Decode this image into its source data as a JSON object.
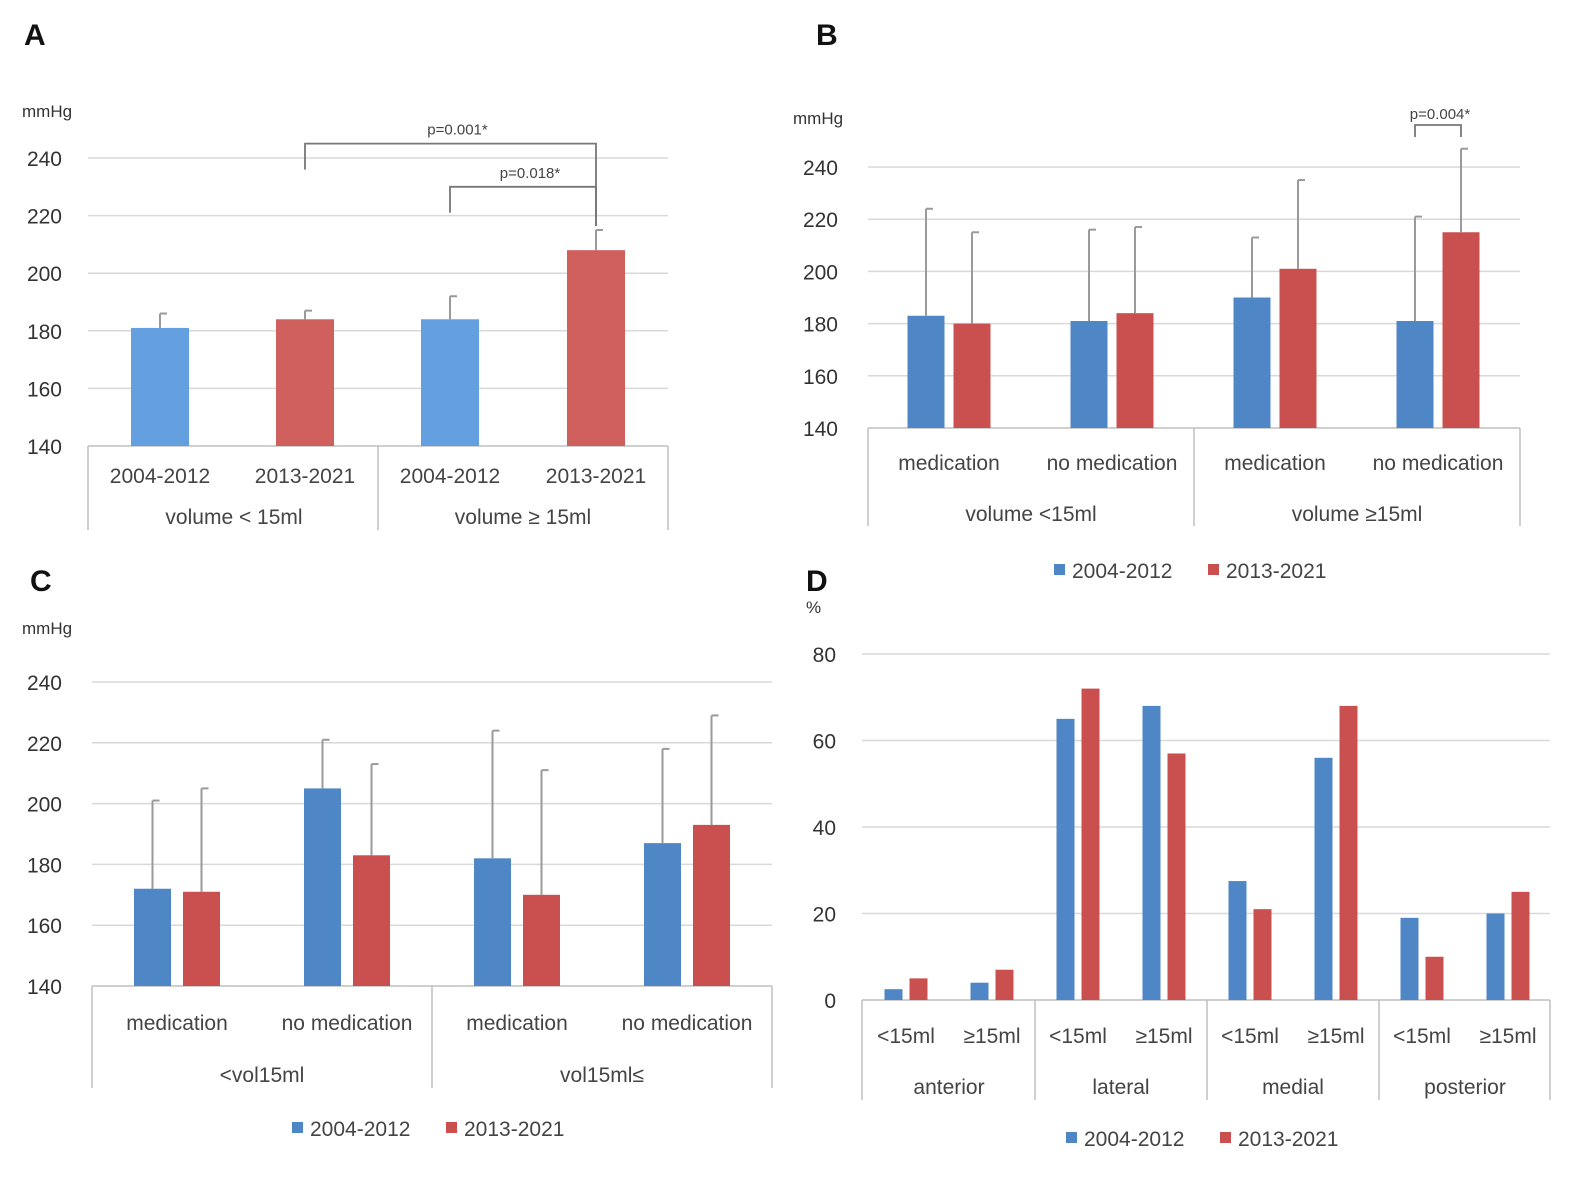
{
  "figure": {
    "colors": {
      "s1_A": "#64A0E0",
      "s2_A": "#D0605E",
      "s1": "#4F86C6",
      "s2": "#C9504E"
    }
  },
  "chart_data": [
    {
      "id": "A",
      "type": "bar",
      "panel_label": "A",
      "unit": "mmHg",
      "ylim": [
        140,
        240
      ],
      "yticks": [
        140,
        160,
        180,
        200,
        220,
        240
      ],
      "grid": true,
      "categories": [
        "2004-2012",
        "2013-2021",
        "2004-2012",
        "2013-2021"
      ],
      "groups": [
        "volume < 15ml",
        "volume ≥ 15ml"
      ],
      "values": [
        181,
        184,
        184,
        208
      ],
      "errors": [
        5,
        3,
        8,
        7
      ],
      "bar_series": [
        0,
        1,
        0,
        1
      ],
      "series_names": [
        "2004-2012",
        "2013-2021"
      ],
      "annotations": [
        {
          "text": "p=0.001*",
          "from": 1,
          "to": 3,
          "level": 245
        },
        {
          "text": "p=0.018*",
          "from": 2,
          "to": 3,
          "level": 230
        }
      ]
    },
    {
      "id": "B",
      "type": "bar",
      "panel_label": "B",
      "unit": "mmHg",
      "ylim": [
        140,
        240
      ],
      "yticks": [
        140,
        160,
        180,
        200,
        220,
        240
      ],
      "grid": true,
      "categories": [
        "medication",
        "no medication",
        "medication",
        "no medication"
      ],
      "groups": [
        "volume <15ml",
        "volume ≥15ml"
      ],
      "series": [
        {
          "name": "2004-2012",
          "values": [
            183,
            181,
            190,
            181
          ],
          "errors": [
            41,
            35,
            23,
            40
          ]
        },
        {
          "name": "2013-2021",
          "values": [
            180,
            184,
            201,
            215
          ],
          "errors": [
            35,
            33,
            34,
            32
          ]
        }
      ],
      "legend": [
        "2004-2012",
        "2013-2021"
      ],
      "annotations": [
        {
          "text": "p=0.004*",
          "category": 3
        }
      ]
    },
    {
      "id": "C",
      "type": "bar",
      "panel_label": "C",
      "unit": "mmHg",
      "ylim": [
        140,
        240
      ],
      "yticks": [
        140,
        160,
        180,
        200,
        220,
        240
      ],
      "grid": true,
      "categories": [
        "medication",
        "no medication",
        "medication",
        "no medication"
      ],
      "groups": [
        "<vol15ml",
        "vol15ml≤"
      ],
      "series": [
        {
          "name": "2004-2012",
          "values": [
            172,
            205,
            182,
            187
          ],
          "errors": [
            29,
            16,
            42,
            31
          ]
        },
        {
          "name": "2013-2021",
          "values": [
            171,
            183,
            170,
            193
          ],
          "errors": [
            34,
            30,
            41,
            36
          ]
        }
      ],
      "legend": [
        "2004-2012",
        "2013-2021"
      ]
    },
    {
      "id": "D",
      "type": "bar",
      "panel_label": "D",
      "unit": "%",
      "ylim": [
        0,
        80
      ],
      "yticks": [
        0,
        20,
        40,
        60,
        80
      ],
      "grid": true,
      "categories": [
        "<15ml",
        "≥15ml",
        "<15ml",
        "≥15ml",
        "<15ml",
        "≥15ml",
        "<15ml",
        "≥15ml"
      ],
      "groups": [
        "anterior",
        "lateral",
        "medial",
        "posterior"
      ],
      "series": [
        {
          "name": "2004-2012",
          "values": [
            2.5,
            4,
            65,
            68,
            27.5,
            56,
            19,
            20
          ]
        },
        {
          "name": "2013-2021",
          "values": [
            5,
            7,
            72,
            57,
            21,
            68,
            10,
            25
          ]
        }
      ],
      "legend": [
        "2004-2012",
        "2013-2021"
      ]
    }
  ]
}
